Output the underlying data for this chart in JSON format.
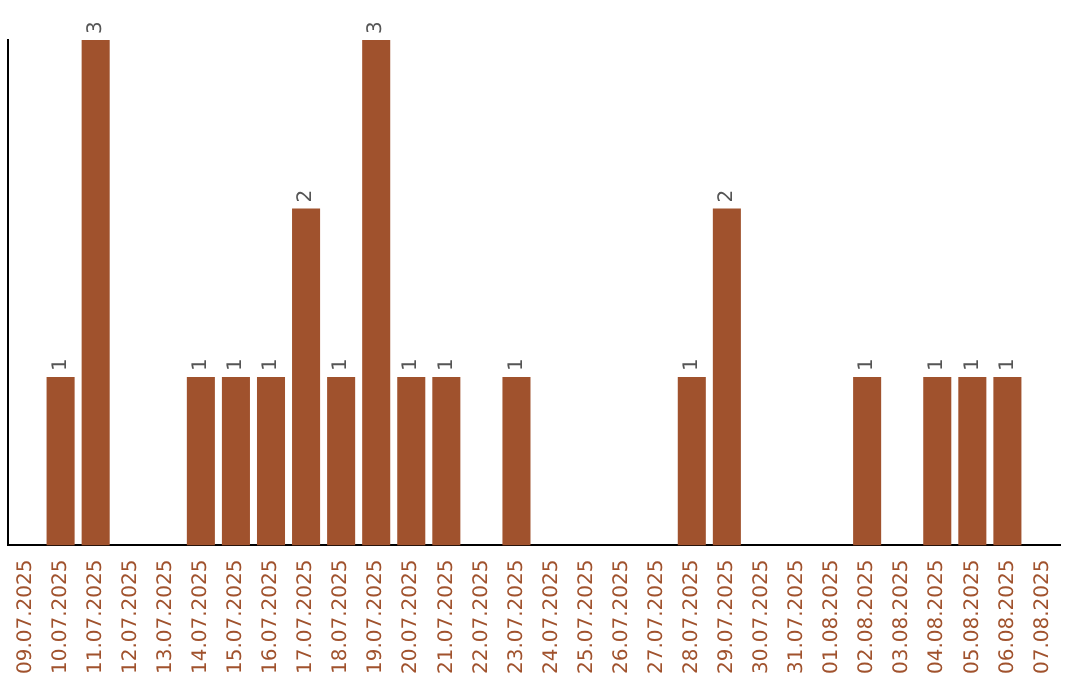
{
  "chart_data": {
    "type": "bar",
    "categories": [
      "09.07.2025",
      "10.07.2025",
      "11.07.2025",
      "12.07.2025",
      "13.07.2025",
      "14.07.2025",
      "15.07.2025",
      "16.07.2025",
      "17.07.2025",
      "18.07.2025",
      "19.07.2025",
      "20.07.2025",
      "21.07.2025",
      "22.07.2025",
      "23.07.2025",
      "24.07.2025",
      "25.07.2025",
      "26.07.2025",
      "27.07.2025",
      "28.07.2025",
      "29.07.2025",
      "30.07.2025",
      "31.07.2025",
      "01.08.2025",
      "02.08.2025",
      "03.08.2025",
      "04.08.2025",
      "05.08.2025",
      "06.08.2025",
      "07.08.2025"
    ],
    "values": [
      0,
      1,
      3,
      0,
      0,
      1,
      1,
      1,
      2,
      1,
      3,
      1,
      1,
      0,
      1,
      0,
      0,
      0,
      0,
      1,
      2,
      0,
      0,
      0,
      1,
      0,
      1,
      1,
      1,
      0
    ],
    "value_labels": [
      null,
      "1",
      "3",
      null,
      null,
      "1",
      "1",
      "1",
      "2",
      "1",
      "3",
      "1",
      "1",
      null,
      "1",
      null,
      null,
      null,
      null,
      "1",
      "2",
      null,
      null,
      null,
      "1",
      null,
      "1",
      "1",
      "1",
      null
    ],
    "color": "#a0522d",
    "grid": false,
    "legend": false,
    "tick_labels": "x"
  }
}
